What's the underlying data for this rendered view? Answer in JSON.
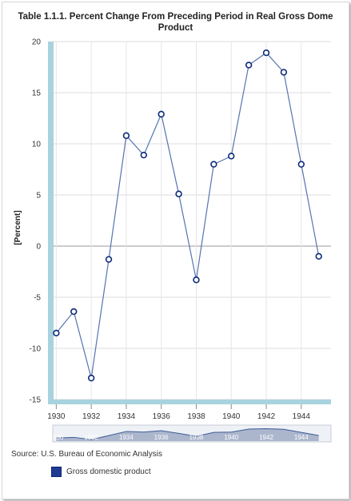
{
  "title_line1": "Table 1.1.1. Percent Change From Preceding Period in Real Gross Dome",
  "title_line2": "Product",
  "source": "Source: U.S. Bureau of Economic Analysis",
  "legend_label": "Gross domestic product",
  "colors": {
    "line": "#5574b0",
    "marker": "#0c2a7a",
    "axis": "#a8d3de",
    "legend": "#1f3a93"
  },
  "chart_data": {
    "type": "line",
    "title": "Table 1.1.1. Percent Change From Preceding Period in Real Gross Domestic Product",
    "ylabel": "[Percent]",
    "xlabel": "",
    "ylim": [
      -15,
      20
    ],
    "xlim": [
      1929.8,
      1945.7
    ],
    "yticks": [
      -15,
      -10,
      -5,
      0,
      5,
      10,
      15,
      20
    ],
    "xticks": [
      1930,
      1932,
      1934,
      1936,
      1938,
      1940,
      1942,
      1944
    ],
    "grid": true,
    "legend_position": "bottom-left",
    "series": [
      {
        "name": "Gross domestic product",
        "x": [
          1930,
          1931,
          1932,
          1933,
          1934,
          1935,
          1936,
          1937,
          1938,
          1939,
          1940,
          1941,
          1942,
          1943,
          1944,
          1945
        ],
        "values": [
          -8.5,
          -6.4,
          -12.9,
          -1.3,
          10.8,
          8.9,
          12.9,
          5.1,
          -3.3,
          8.0,
          8.8,
          17.7,
          18.9,
          17.0,
          8.0,
          -1.0
        ]
      }
    ]
  },
  "navigator": {
    "labels": [
      "1930",
      "1932",
      "1934",
      "1936",
      "1938",
      "1940",
      "1942",
      "1944"
    ]
  }
}
